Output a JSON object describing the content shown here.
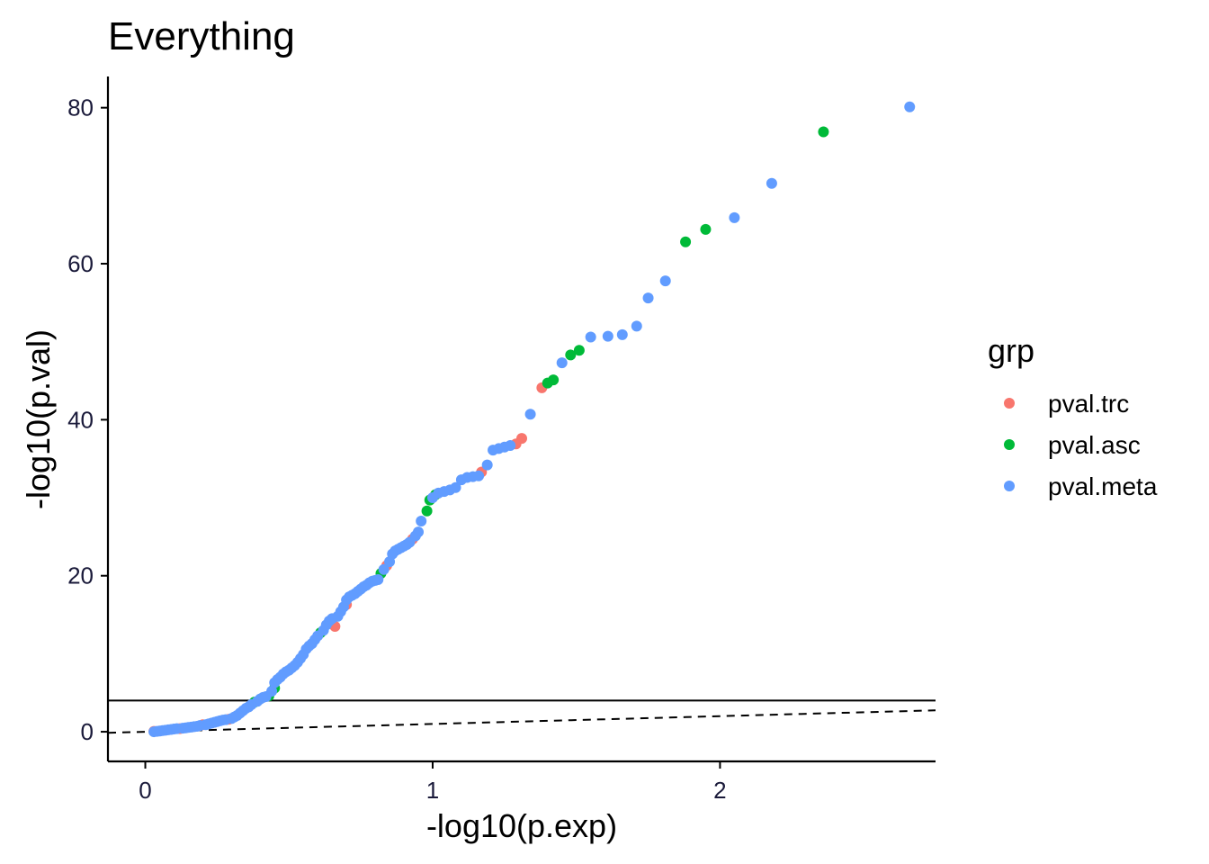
{
  "chart_data": {
    "type": "scatter",
    "title": "Everything",
    "xlabel": "-log10(p.exp)",
    "ylabel": "-log10(p.val)",
    "xlim": [
      -0.13,
      2.75
    ],
    "ylim": [
      -3.8,
      84
    ],
    "x_ticks": [
      0,
      1,
      2
    ],
    "y_ticks": [
      0,
      20,
      40,
      60,
      80
    ],
    "grid": false,
    "hline": 4,
    "diagonal": {
      "slope": 1,
      "intercept": 0,
      "style": "dashed"
    },
    "legend": {
      "title": "grp",
      "position": "right"
    },
    "colors": {
      "pval.trc": "#F8766D",
      "pval.asc": "#00BA38",
      "pval.meta": "#619CFF"
    },
    "series": [
      {
        "name": "pval.trc",
        "points": [
          [
            0.03,
            0.05
          ],
          [
            0.12,
            0.4
          ],
          [
            0.2,
            0.9
          ],
          [
            0.29,
            1.6
          ],
          [
            0.66,
            13.5
          ],
          [
            0.7,
            16.3
          ],
          [
            0.84,
            21.3
          ],
          [
            0.93,
            24.7
          ],
          [
            1.17,
            33.3
          ],
          [
            1.29,
            36.9
          ],
          [
            1.31,
            37.6
          ],
          [
            1.38,
            44.1
          ]
        ]
      },
      {
        "name": "pval.asc",
        "points": [
          [
            0.38,
            3.8
          ],
          [
            0.43,
            4.6
          ],
          [
            0.45,
            5.6
          ],
          [
            0.61,
            12.7
          ],
          [
            0.82,
            20.3
          ],
          [
            0.98,
            28.3
          ],
          [
            0.99,
            29.7
          ],
          [
            1.01,
            30.4
          ],
          [
            1.4,
            44.7
          ],
          [
            1.42,
            45.1
          ],
          [
            1.48,
            48.3
          ],
          [
            1.51,
            48.9
          ],
          [
            1.88,
            62.8
          ],
          [
            1.95,
            64.4
          ],
          [
            2.36,
            76.9
          ]
        ]
      },
      {
        "name": "pval.meta",
        "points": [
          [
            0.03,
            0.0
          ],
          [
            0.04,
            0.05
          ],
          [
            0.05,
            0.1
          ],
          [
            0.06,
            0.15
          ],
          [
            0.07,
            0.2
          ],
          [
            0.08,
            0.25
          ],
          [
            0.09,
            0.3
          ],
          [
            0.1,
            0.35
          ],
          [
            0.11,
            0.4
          ],
          [
            0.13,
            0.45
          ],
          [
            0.14,
            0.5
          ],
          [
            0.15,
            0.55
          ],
          [
            0.16,
            0.6
          ],
          [
            0.17,
            0.65
          ],
          [
            0.18,
            0.7
          ],
          [
            0.19,
            0.8
          ],
          [
            0.21,
            0.9
          ],
          [
            0.22,
            1.0
          ],
          [
            0.23,
            1.1
          ],
          [
            0.24,
            1.2
          ],
          [
            0.25,
            1.3
          ],
          [
            0.26,
            1.4
          ],
          [
            0.27,
            1.5
          ],
          [
            0.28,
            1.55
          ],
          [
            0.3,
            1.7
          ],
          [
            0.31,
            1.9
          ],
          [
            0.32,
            2.1
          ],
          [
            0.33,
            2.4
          ],
          [
            0.34,
            2.7
          ],
          [
            0.35,
            3.0
          ],
          [
            0.36,
            3.2
          ],
          [
            0.37,
            3.5
          ],
          [
            0.39,
            3.9
          ],
          [
            0.4,
            4.2
          ],
          [
            0.41,
            4.4
          ],
          [
            0.42,
            4.5
          ],
          [
            0.44,
            5.2
          ],
          [
            0.45,
            6.3
          ],
          [
            0.46,
            6.7
          ],
          [
            0.47,
            7.0
          ],
          [
            0.48,
            7.4
          ],
          [
            0.49,
            7.7
          ],
          [
            0.5,
            7.9
          ],
          [
            0.51,
            8.2
          ],
          [
            0.52,
            8.5
          ],
          [
            0.53,
            8.9
          ],
          [
            0.54,
            9.4
          ],
          [
            0.55,
            9.9
          ],
          [
            0.56,
            10.6
          ],
          [
            0.57,
            11.0
          ],
          [
            0.58,
            11.3
          ],
          [
            0.59,
            11.8
          ],
          [
            0.6,
            12.3
          ],
          [
            0.62,
            13.0
          ],
          [
            0.63,
            13.7
          ],
          [
            0.64,
            14.2
          ],
          [
            0.65,
            14.5
          ],
          [
            0.67,
            14.8
          ],
          [
            0.68,
            15.4
          ],
          [
            0.69,
            16.0
          ],
          [
            0.7,
            16.9
          ],
          [
            0.71,
            17.3
          ],
          [
            0.72,
            17.5
          ],
          [
            0.73,
            17.7
          ],
          [
            0.74,
            18.0
          ],
          [
            0.75,
            18.3
          ],
          [
            0.76,
            18.6
          ],
          [
            0.77,
            18.8
          ],
          [
            0.78,
            19.1
          ],
          [
            0.79,
            19.3
          ],
          [
            0.8,
            19.4
          ],
          [
            0.81,
            19.5
          ],
          [
            0.83,
            20.8
          ],
          [
            0.85,
            21.8
          ],
          [
            0.86,
            22.8
          ],
          [
            0.87,
            23.2
          ],
          [
            0.88,
            23.4
          ],
          [
            0.89,
            23.6
          ],
          [
            0.9,
            23.8
          ],
          [
            0.91,
            24.0
          ],
          [
            0.92,
            24.3
          ],
          [
            0.94,
            25.1
          ],
          [
            0.95,
            25.6
          ],
          [
            0.96,
            27.0
          ],
          [
            1.0,
            30.0
          ],
          [
            1.02,
            30.6
          ],
          [
            1.04,
            30.8
          ],
          [
            1.06,
            31.0
          ],
          [
            1.08,
            31.3
          ],
          [
            1.1,
            32.3
          ],
          [
            1.12,
            32.6
          ],
          [
            1.14,
            32.7
          ],
          [
            1.16,
            32.8
          ],
          [
            1.19,
            34.2
          ],
          [
            1.21,
            36.1
          ],
          [
            1.23,
            36.3
          ],
          [
            1.25,
            36.5
          ],
          [
            1.27,
            36.7
          ],
          [
            1.34,
            40.7
          ],
          [
            1.45,
            47.3
          ],
          [
            1.55,
            50.6
          ],
          [
            1.61,
            50.7
          ],
          [
            1.66,
            50.9
          ],
          [
            1.71,
            52.0
          ],
          [
            1.75,
            55.6
          ],
          [
            1.81,
            57.8
          ],
          [
            2.05,
            65.9
          ],
          [
            2.18,
            70.3
          ],
          [
            2.66,
            80.1
          ]
        ]
      }
    ]
  }
}
